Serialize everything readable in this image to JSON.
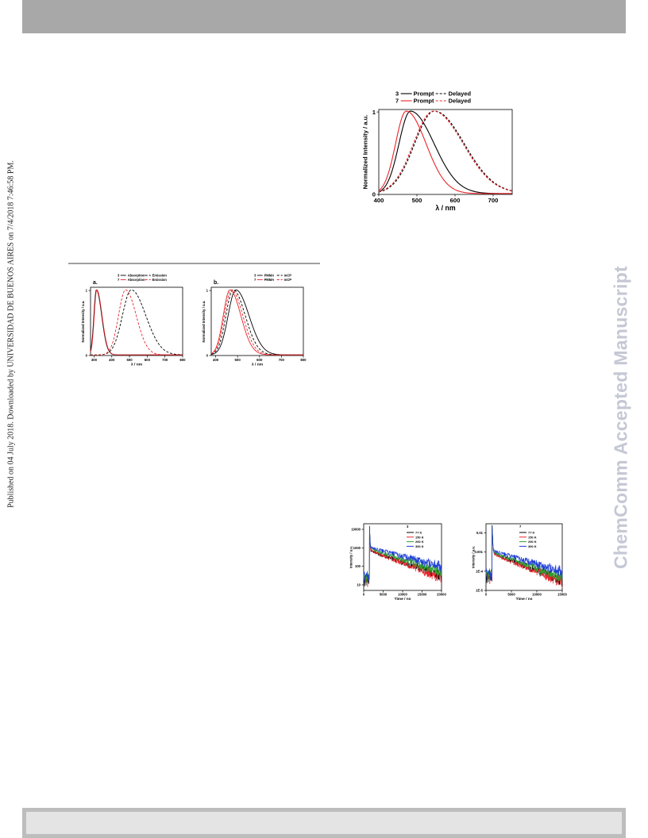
{
  "sidebar_note": "Published on 04 July 2018. Downloaded by UNIVERSIDAD DE BUENOS AIRES on 7/4/2018 7:46:58 PM.",
  "watermark": "ChemComm Accepted Manuscript",
  "colors": {
    "black": "#000000",
    "red": "#e8252b",
    "green": "#2ca02c",
    "blue": "#1f3fd6",
    "header": "#a8a8a8",
    "watermark": "#c5c8d4"
  },
  "chart_data": [
    {
      "id": "top-spectra",
      "type": "line",
      "xlabel": "λ / nm",
      "ylabel": "Normalized Intensity / a.u.",
      "xlim": [
        400,
        750
      ],
      "ylim": [
        0,
        1.03
      ],
      "xticks": [
        400,
        500,
        600,
        700
      ],
      "yticks": [
        0,
        1
      ],
      "legend": [
        {
          "label": "3",
          "mid": "Prompt",
          "right": "Delayed",
          "color": "#000000"
        },
        {
          "label": "7",
          "mid": "Prompt",
          "right": "Delayed",
          "color": "#e8252b"
        }
      ],
      "series": [
        {
          "color": "#000000",
          "dash": false,
          "peak": 483,
          "wl": 30,
          "wr": 62
        },
        {
          "color": "#e8252b",
          "dash": false,
          "peak": 472,
          "wl": 28,
          "wr": 52
        },
        {
          "color": "#000000",
          "dash": true,
          "peak": 546,
          "wl": 52,
          "wr": 78
        },
        {
          "color": "#e8252b",
          "dash": true,
          "peak": 543,
          "wl": 52,
          "wr": 78
        }
      ]
    },
    {
      "id": "panel-a",
      "type": "line",
      "panel_label": "a.",
      "xlabel": "λ / nm",
      "ylabel": "Normalized Intensity / a.u.",
      "xlim": [
        280,
        800
      ],
      "ylim": [
        0,
        1.05
      ],
      "xticks": [
        300,
        400,
        500,
        600,
        700,
        800
      ],
      "yticks": [
        0,
        1
      ],
      "legend": [
        {
          "label": "3",
          "mid": "Absorption",
          "right": "Emission",
          "color": "#000000"
        },
        {
          "label": "7",
          "mid": "Absorption",
          "right": "Emission",
          "color": "#e8252b"
        }
      ],
      "series": [
        {
          "color": "#000000",
          "dash": false,
          "peak": 313,
          "wl": 14,
          "wr": 30
        },
        {
          "color": "#e8252b",
          "dash": false,
          "peak": 315,
          "wl": 14,
          "wr": 30
        },
        {
          "color": "#000000",
          "dash": true,
          "peak": 510,
          "wl": 50,
          "wr": 82
        },
        {
          "color": "#e8252b",
          "dash": true,
          "peak": 478,
          "wl": 40,
          "wr": 60
        }
      ]
    },
    {
      "id": "panel-b",
      "type": "line",
      "panel_label": "b.",
      "xlabel": "λ / nm",
      "ylabel": "Normalized Intensity / a.u.",
      "xlim": [
        380,
        800
      ],
      "ylim": [
        0,
        1.05
      ],
      "xticks": [
        400,
        500,
        600,
        700,
        800
      ],
      "yticks": [
        0,
        1
      ],
      "legend": [
        {
          "label": "3",
          "mid": "PMMA",
          "right": "mCP",
          "color": "#000000"
        },
        {
          "label": "7",
          "mid": "PMMA",
          "right": "mCP",
          "color": "#e8252b"
        }
      ],
      "series": [
        {
          "color": "#000000",
          "dash": false,
          "peak": 492,
          "wl": 35,
          "wr": 60
        },
        {
          "color": "#000000",
          "dash": true,
          "peak": 480,
          "wl": 33,
          "wr": 55
        },
        {
          "color": "#e8252b",
          "dash": false,
          "peak": 465,
          "wl": 30,
          "wr": 50
        },
        {
          "color": "#e8252b",
          "dash": true,
          "peak": 472,
          "wl": 32,
          "wr": 52
        }
      ]
    },
    {
      "id": "decay-3",
      "type": "line",
      "scale": "log",
      "xlabel": "Time / ns",
      "ylabel": "Intensity / a.u.",
      "xlim": [
        0,
        20000
      ],
      "ylim": [
        5,
        20000
      ],
      "xticks": [
        0,
        5000,
        10000,
        15000,
        20000
      ],
      "yticks": [
        10,
        100,
        1000,
        10000
      ],
      "legend_title": "3",
      "legend": [
        {
          "label": "77 K",
          "color": "#000000"
        },
        {
          "label": "150 K",
          "color": "#e8252b"
        },
        {
          "label": "200 K",
          "color": "#2ca02c"
        },
        {
          "label": "300 K",
          "color": "#1f3fd6"
        }
      ],
      "series": [
        {
          "color": "#000000",
          "start": 1500,
          "peak": 15000,
          "tail": 700,
          "tau": 6000,
          "floor": 7
        },
        {
          "color": "#e8252b",
          "start": 1500,
          "peak": 15000,
          "tail": 760,
          "tau": 5300,
          "floor": 7
        },
        {
          "color": "#2ca02c",
          "start": 1500,
          "peak": 15000,
          "tail": 900,
          "tau": 6500,
          "floor": 9
        },
        {
          "color": "#1f3fd6",
          "start": 1500,
          "peak": 15000,
          "tail": 1050,
          "tau": 7800,
          "floor": 12
        }
      ]
    },
    {
      "id": "decay-7",
      "type": "line",
      "scale": "log",
      "xlabel": "Time / ns",
      "ylabel": "Intensity / a.u.",
      "xlim": [
        0,
        15000
      ],
      "ylim": [
        1e-05,
        0.03
      ],
      "xticks": [
        0,
        5000,
        10000,
        15000
      ],
      "ytick_labels": [
        "1E-5",
        "1E-4",
        "0.001",
        "0.01"
      ],
      "yticks": [
        1e-05,
        0.0001,
        0.001,
        0.01
      ],
      "legend_title": "7",
      "legend": [
        {
          "label": "77 K",
          "color": "#000000"
        },
        {
          "label": "150 K",
          "color": "#e8252b"
        },
        {
          "label": "200 K",
          "color": "#2ca02c"
        },
        {
          "label": "300 K",
          "color": "#1f3fd6"
        }
      ],
      "series": [
        {
          "color": "#000000",
          "start": 1200,
          "peak": 0.025,
          "tail": 0.0009,
          "tau": 4200,
          "floor": 2e-05
        },
        {
          "color": "#e8252b",
          "start": 1200,
          "peak": 0.025,
          "tail": 0.00085,
          "tau": 4000,
          "floor": 2e-05
        },
        {
          "color": "#2ca02c",
          "start": 1200,
          "peak": 0.025,
          "tail": 0.001,
          "tau": 4600,
          "floor": 2.5e-05
        },
        {
          "color": "#1f3fd6",
          "start": 1200,
          "peak": 0.025,
          "tail": 0.0012,
          "tau": 5400,
          "floor": 3e-05
        }
      ]
    }
  ]
}
